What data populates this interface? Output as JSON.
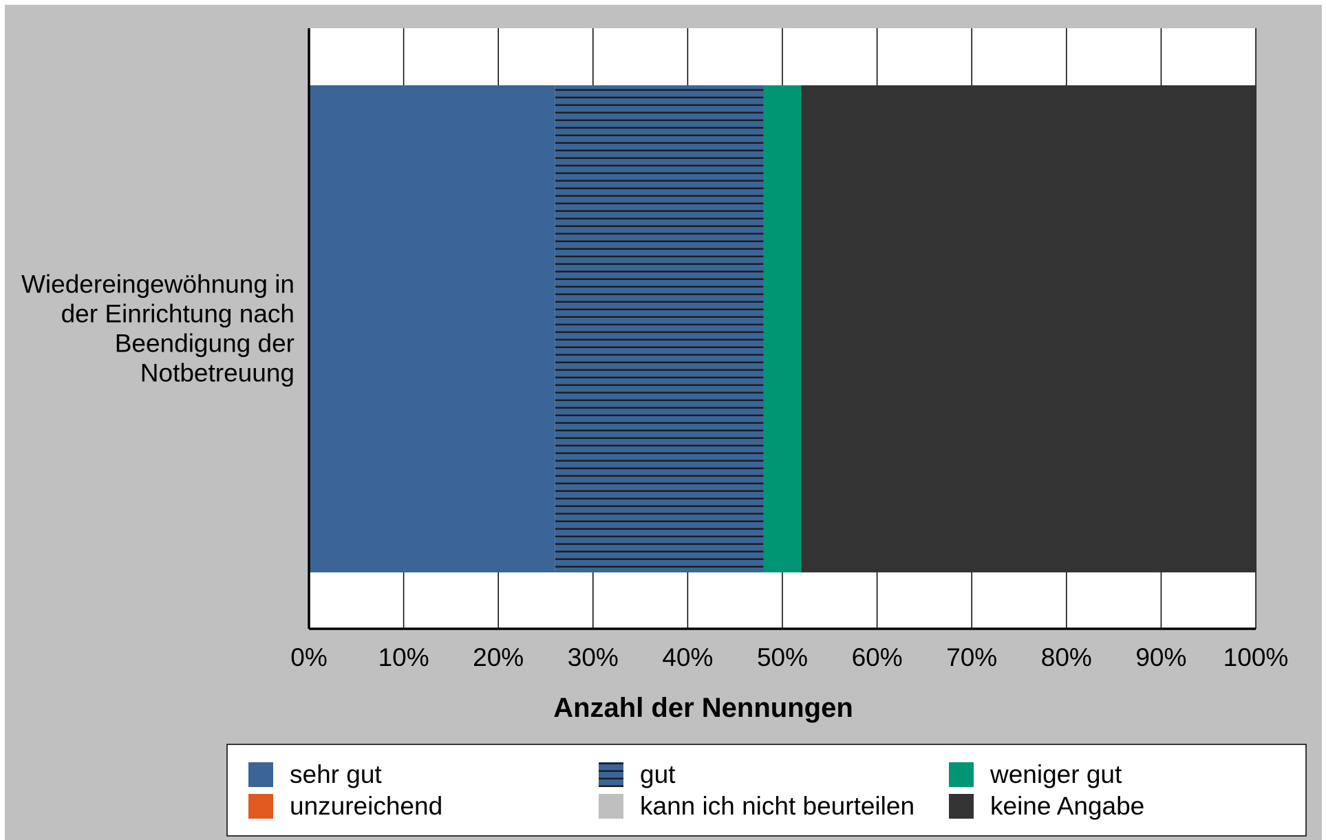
{
  "chart_data": {
    "type": "bar",
    "orientation": "horizontal",
    "stacked": true,
    "title": "",
    "xlabel": "Anzahl der Nennungen",
    "ylabel": "",
    "xlim": [
      0,
      100
    ],
    "x_ticks": [
      "0%",
      "10%",
      "20%",
      "30%",
      "40%",
      "50%",
      "60%",
      "70%",
      "80%",
      "90%",
      "100%"
    ],
    "grid": true,
    "legend_position": "bottom",
    "categories": [
      "Wiedereingewöhnung in der Einrichtung nach Beendigung der Notbetreuung"
    ],
    "category_label_lines": [
      "Wiedereingewöhnung in",
      "der Einrichtung nach",
      "Beendigung der",
      "Notbetreuung"
    ],
    "series": [
      {
        "name": "sehr gut",
        "values": [
          26
        ],
        "color": "#3b6597",
        "pattern": "solid"
      },
      {
        "name": "gut",
        "values": [
          22
        ],
        "color": "#3b6597",
        "pattern": "horizontal-lines"
      },
      {
        "name": "weniger gut",
        "values": [
          4
        ],
        "color": "#009673",
        "pattern": "solid"
      },
      {
        "name": "unzureichend",
        "values": [
          0
        ],
        "color": "#e05a1f",
        "pattern": "solid"
      },
      {
        "name": "kann ich nicht beurteilen",
        "values": [
          0
        ],
        "color": "#bfbfbf",
        "pattern": "solid"
      },
      {
        "name": "keine Angabe",
        "values": [
          48
        ],
        "color": "#333333",
        "pattern": "solid"
      }
    ],
    "legend_order": [
      "sehr gut",
      "gut",
      "weniger gut",
      "unzureichend",
      "kann ich nicht beurteilen",
      "keine Angabe"
    ],
    "colors": {
      "chart_background": "#c0c0c0",
      "plot_background": "#ffffff",
      "grid": "#000000",
      "hatch_line": "#1e1e1e"
    }
  }
}
